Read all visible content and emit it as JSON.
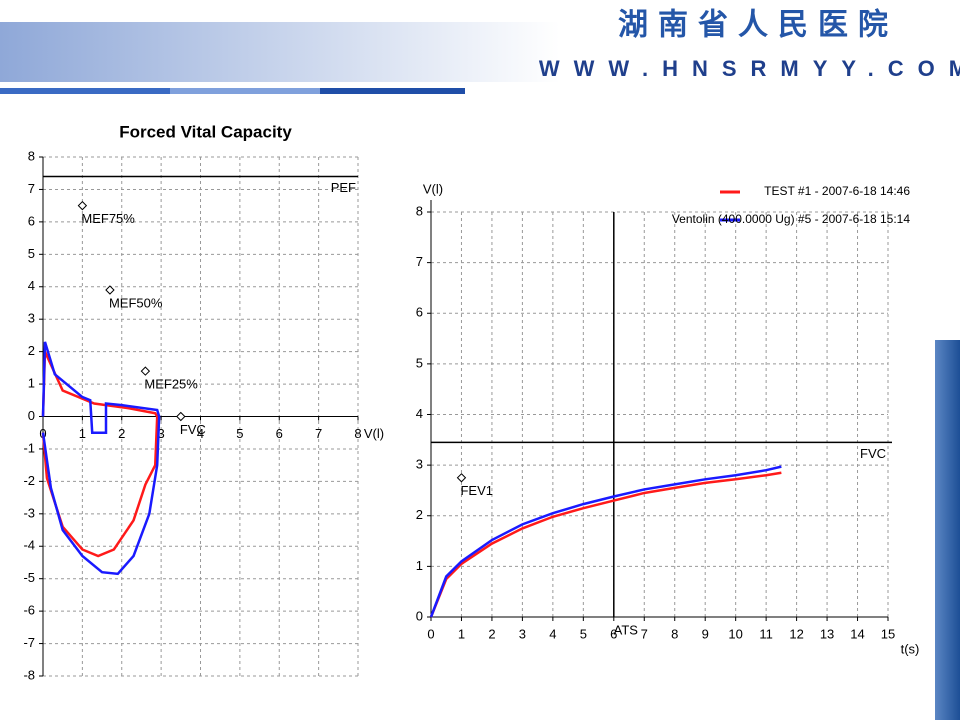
{
  "header": {
    "title": "湖南省人民医院",
    "url": "WWW.HNSRMYY.COM"
  },
  "chart_data": [
    {
      "type": "line",
      "title": "Forced Vital Capacity",
      "x_label": "V(l)",
      "xlim": [
        0,
        8
      ],
      "ylim": [
        -8,
        8
      ],
      "xticks": [
        0,
        1,
        2,
        3,
        4,
        5,
        6,
        7,
        8
      ],
      "yticks": [
        -8,
        -7,
        -6,
        -5,
        -4,
        -3,
        -2,
        -1,
        0,
        1,
        2,
        3,
        4,
        5,
        6,
        7,
        8
      ],
      "grid": true,
      "series": [
        {
          "color": "#ff1a1a",
          "x": [
            0,
            0.05,
            0.5,
            1.3,
            2.2,
            2.85,
            2.9,
            2.85,
            2.6,
            2.3,
            1.8,
            1.4,
            1,
            0.5,
            0.1,
            0
          ],
          "y": [
            0,
            2,
            0.8,
            0.4,
            0.25,
            0.1,
            0,
            -1.5,
            -2.1,
            -3.2,
            -4.1,
            -4.3,
            -4.1,
            -3.4,
            -1.9,
            -0.5
          ]
        },
        {
          "color": "#1a1aff",
          "x": [
            0,
            0.05,
            0.3,
            1,
            1.2,
            1.25,
            1.6,
            1.6,
            2,
            2.9,
            2.95,
            2.9,
            2.7,
            2.3,
            1.9,
            1.5,
            1,
            0.5,
            0.2,
            0
          ],
          "y": [
            0,
            2.3,
            1.3,
            0.6,
            0.5,
            -0.5,
            -0.5,
            0.4,
            0.35,
            0.2,
            0,
            -1.5,
            -3,
            -4.3,
            -4.85,
            -4.8,
            -4.3,
            -3.5,
            -2.2,
            -0.5
          ]
        }
      ],
      "hlines": [
        {
          "label": "PEF",
          "y": 7.4
        }
      ],
      "markers": [
        {
          "label": "MEF75%",
          "x": 1,
          "y": 6.5
        },
        {
          "label": "MEF50%",
          "x": 1.7,
          "y": 3.9
        },
        {
          "label": "MEF25%",
          "x": 2.6,
          "y": 1.4
        },
        {
          "label": "FVC",
          "x": 3.5,
          "y": 0
        }
      ]
    },
    {
      "type": "line",
      "x_label": "t(s)",
      "y_label": "V(l)",
      "xlim": [
        0,
        15
      ],
      "ylim": [
        0,
        8
      ],
      "xticks": [
        0,
        1,
        2,
        3,
        4,
        5,
        6,
        7,
        8,
        9,
        10,
        11,
        12,
        13,
        14,
        15
      ],
      "yticks": [
        0,
        1,
        2,
        3,
        4,
        5,
        6,
        7,
        8
      ],
      "grid": true,
      "legend": "top-right",
      "series": [
        {
          "name": "TEST #1 - 2007-6-18  14:46",
          "color": "#ff1a1a",
          "x": [
            0,
            0.5,
            1,
            2,
            3,
            4,
            5,
            6,
            7,
            8,
            9,
            10,
            11,
            11.5
          ],
          "y": [
            0,
            0.75,
            1.05,
            1.45,
            1.75,
            1.98,
            2.15,
            2.3,
            2.45,
            2.55,
            2.65,
            2.72,
            2.8,
            2.85
          ]
        },
        {
          "name": "Ventolin (400.0000 Ug) #5 - 2007-6-18  15:14",
          "color": "#1a1aff",
          "x": [
            0,
            0.5,
            1,
            2,
            3,
            4,
            5,
            6,
            7,
            8,
            9,
            10,
            11,
            11.5
          ],
          "y": [
            0,
            0.8,
            1.1,
            1.52,
            1.83,
            2.05,
            2.23,
            2.38,
            2.52,
            2.62,
            2.72,
            2.8,
            2.9,
            2.97
          ]
        }
      ],
      "hlines": [
        {
          "label": "FVC",
          "y": 3.45
        }
      ],
      "vlines": [
        {
          "label": "ATS",
          "x": 6
        }
      ],
      "markers": [
        {
          "label": "FEV1",
          "x": 1,
          "y": 2.75
        }
      ]
    }
  ]
}
